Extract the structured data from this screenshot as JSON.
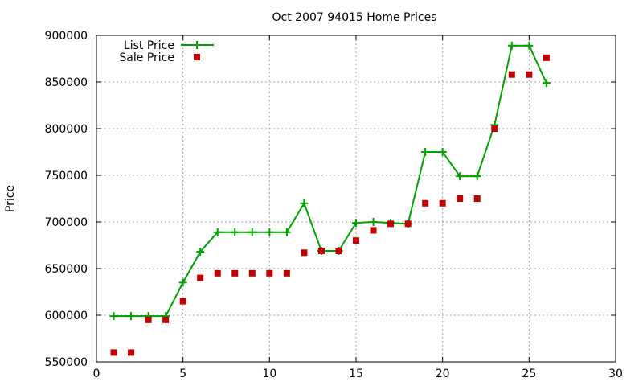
{
  "chart_data": {
    "type": "line",
    "title": "Oct 2007 94015 Home Prices",
    "xlabel": "",
    "ylabel": "Price",
    "xlim": [
      0,
      30
    ],
    "ylim": [
      550000,
      900000
    ],
    "x_ticks": [
      0,
      5,
      10,
      15,
      20,
      25,
      30
    ],
    "y_ticks": [
      550000,
      600000,
      650000,
      700000,
      750000,
      800000,
      850000,
      900000
    ],
    "grid": true,
    "legend_position": "top-left",
    "series": [
      {
        "name": "List Price",
        "style": "line+cross",
        "color": "#00a000",
        "x": [
          1,
          2,
          3,
          4,
          5,
          6,
          7,
          8,
          9,
          10,
          11,
          12,
          13,
          14,
          15,
          16,
          17,
          18,
          19,
          20,
          21,
          22,
          23,
          24,
          25,
          26
        ],
        "values": [
          599000,
          599000,
          599000,
          599000,
          635000,
          668000,
          689000,
          689000,
          689000,
          689000,
          689000,
          720000,
          669000,
          669000,
          699000,
          700000,
          699000,
          698000,
          775000,
          775000,
          749000,
          749000,
          804000,
          889000,
          889000,
          849000
        ]
      },
      {
        "name": "Sale Price",
        "style": "square",
        "color": "#c00000",
        "x": [
          1,
          2,
          3,
          4,
          5,
          6,
          7,
          8,
          9,
          10,
          11,
          12,
          13,
          14,
          15,
          16,
          17,
          18,
          19,
          20,
          21,
          22,
          23,
          24,
          25,
          26
        ],
        "values": [
          560000,
          560000,
          595000,
          595000,
          615000,
          640000,
          645000,
          645000,
          645000,
          645000,
          645000,
          667000,
          669000,
          669000,
          680000,
          691000,
          698000,
          698000,
          720000,
          720000,
          725000,
          725000,
          800000,
          858000,
          858000,
          876000
        ]
      }
    ]
  }
}
